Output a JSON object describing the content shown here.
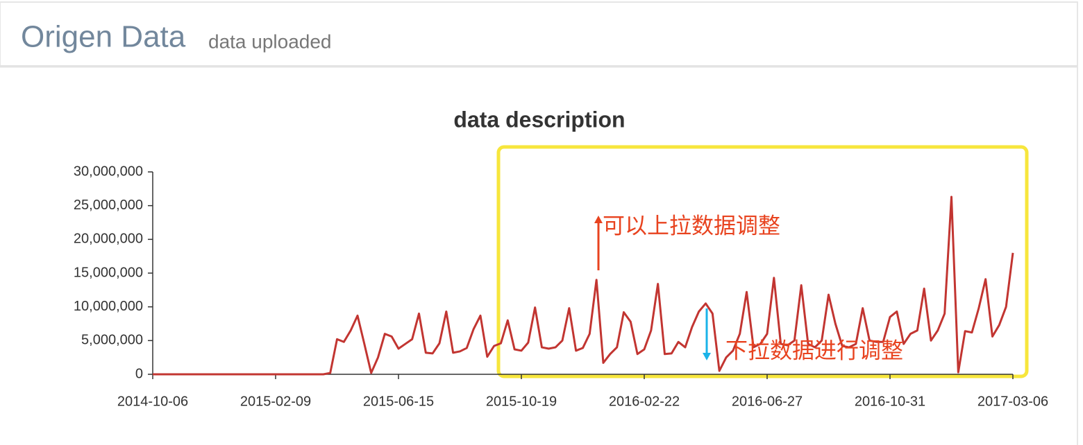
{
  "header": {
    "title": "Origen Data",
    "subtitle": "data uploaded"
  },
  "chart_data": {
    "type": "line",
    "title": "data description",
    "annotations": [
      "可以上拉数据调整",
      "下拉数据进行调整"
    ],
    "categories": [
      "2014-10-06",
      null,
      null,
      null,
      null,
      null,
      null,
      null,
      null,
      null,
      null,
      null,
      null,
      null,
      null,
      null,
      null,
      null,
      "2015-02-09",
      null,
      null,
      null,
      null,
      null,
      null,
      null,
      null,
      null,
      null,
      null,
      null,
      null,
      null,
      null,
      null,
      null,
      "2015-06-15",
      null,
      null,
      null,
      null,
      null,
      null,
      null,
      null,
      null,
      null,
      null,
      null,
      null,
      null,
      null,
      null,
      null,
      "2015-10-19",
      null,
      null,
      null,
      null,
      null,
      null,
      null,
      null,
      null,
      null,
      null,
      null,
      null,
      null,
      null,
      null,
      null,
      "2016-02-22",
      null,
      null,
      null,
      null,
      null,
      null,
      null,
      null,
      null,
      null,
      null,
      null,
      null,
      null,
      null,
      null,
      null,
      "2016-06-27",
      null,
      null,
      null,
      null,
      null,
      null,
      null,
      null,
      null,
      null,
      null,
      null,
      null,
      null,
      null,
      null,
      null,
      "2016-10-31",
      null,
      null,
      null,
      null,
      null,
      null,
      null,
      null,
      null,
      null,
      null,
      null,
      null,
      null,
      null,
      null,
      null,
      "2017-03-06"
    ],
    "values": [
      0,
      0,
      0,
      0,
      0,
      0,
      0,
      0,
      0,
      0,
      0,
      0,
      0,
      0,
      0,
      0,
      0,
      0,
      0,
      0,
      0,
      0,
      0,
      0,
      0,
      0,
      200000,
      5200000,
      4800000,
      6500000,
      8700000,
      4500000,
      200000,
      2500000,
      6000000,
      5600000,
      3800000,
      4500000,
      5200000,
      9000000,
      3200000,
      3100000,
      4600000,
      9300000,
      3200000,
      3400000,
      3900000,
      6700000,
      8700000,
      2600000,
      4200000,
      4600000,
      8000000,
      3700000,
      3500000,
      4700000,
      9900000,
      4000000,
      3800000,
      4000000,
      5000000,
      9800000,
      3500000,
      3900000,
      6000000,
      14000000,
      1700000,
      3000000,
      4000000,
      9200000,
      7800000,
      3000000,
      3700000,
      6500000,
      13400000,
      3000000,
      3100000,
      4800000,
      4000000,
      7000000,
      9300000,
      10500000,
      9000000,
      500000,
      2500000,
      3500000,
      6000000,
      12200000,
      4000000,
      4500000,
      6000000,
      14300000,
      4500000,
      4300000,
      5000000,
      13200000,
      4500000,
      4000000,
      5000000,
      11800000,
      7500000,
      4200000,
      4000000,
      4500000,
      9800000,
      5000000,
      4800000,
      4800000,
      8500000,
      9300000,
      4500000,
      6000000,
      6500000,
      12700000,
      5000000,
      6500000,
      9000000,
      26300000,
      300000,
      6400000,
      6200000,
      9800000,
      14100000,
      5600000,
      7300000,
      10000000,
      18000000
    ],
    "color": "#c23531",
    "ylim": [
      0,
      30000000
    ],
    "yticks": [
      0,
      {
        "value": 5000000,
        "label": "5,000,000"
      },
      {
        "value": 10000000,
        "label": "10,000,000"
      },
      {
        "value": 15000000,
        "label": "15,000,000"
      },
      {
        "value": 20000000,
        "label": "20,000,000"
      },
      {
        "value": 25000000,
        "label": "25,000,000"
      },
      {
        "value": 30000000,
        "label": "30,000,000"
      }
    ],
    "grid": false
  }
}
